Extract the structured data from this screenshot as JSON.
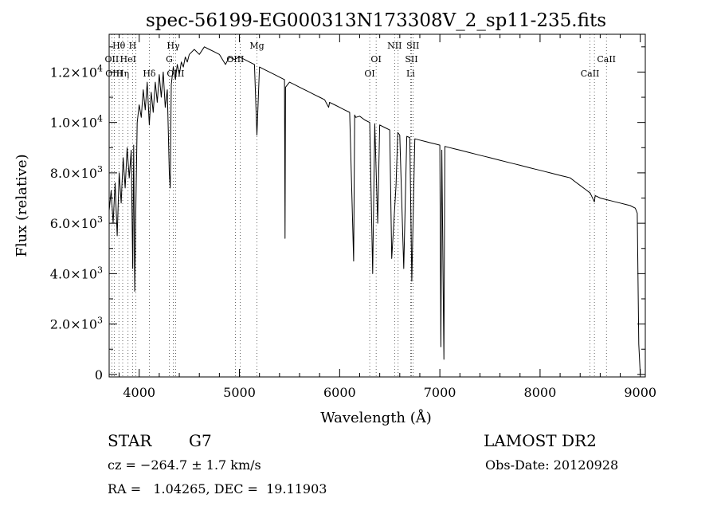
{
  "chart_data": {
    "type": "line",
    "title": "spec-56199-EG000313N173308V_2_sp11-235.fits",
    "xlabel": "Wavelength (Å)",
    "ylabel": "Flux (relative)",
    "xlim": [
      3700,
      9050
    ],
    "ylim": [
      -100,
      13500
    ],
    "x_ticks": [
      4000,
      5000,
      6000,
      7000,
      8000,
      9000
    ],
    "x_tick_labels": [
      "4000",
      "5000",
      "6000",
      "7000",
      "8000",
      "9000"
    ],
    "y_ticks": [
      0,
      2000,
      4000,
      6000,
      8000,
      10000,
      12000
    ],
    "y_tick_labels": [
      {
        "base": "0",
        "exp": ""
      },
      {
        "base": "2.0×10",
        "exp": "3"
      },
      {
        "base": "4.0×10",
        "exp": "3"
      },
      {
        "base": "6.0×10",
        "exp": "3"
      },
      {
        "base": "8.0×10",
        "exp": "3"
      },
      {
        "base": "1.0×10",
        "exp": "4"
      },
      {
        "base": "1.2×10",
        "exp": "4"
      }
    ],
    "grid": false,
    "series": [
      {
        "x": [
          3700,
          3720,
          3740,
          3760,
          3780,
          3800,
          3820,
          3840,
          3860,
          3880,
          3900,
          3920,
          3935,
          3945,
          3955,
          3968,
          3980,
          4000,
          4020,
          4040,
          4060,
          4080,
          4101,
          4120,
          4140,
          4160,
          4180,
          4200,
          4220,
          4240,
          4260,
          4280,
          4300,
          4310,
          4320,
          4340,
          4361,
          4380,
          4400,
          4420,
          4440,
          4460,
          4480,
          4500,
          4550,
          4600,
          4650,
          4700,
          4750,
          4800,
          4861,
          4900,
          4950,
          5000,
          5050,
          5100,
          5150,
          5175,
          5200,
          5250,
          5300,
          5350,
          5400,
          5450,
          5455,
          5460,
          5500,
          5550,
          5600,
          5650,
          5700,
          5750,
          5800,
          5850,
          5890,
          5900,
          5950,
          6000,
          6050,
          6100,
          6140,
          6150,
          6160,
          6200,
          6250,
          6300,
          6330,
          6350,
          6380,
          6400,
          6450,
          6500,
          6520,
          6563,
          6580,
          6600,
          6640,
          6670,
          6700,
          6720,
          6750,
          6800,
          6850,
          6900,
          6950,
          7000,
          7010,
          7020,
          7040,
          7050,
          7100,
          7150,
          7200,
          7250,
          7300,
          7350,
          7400,
          7450,
          7500,
          7550,
          7600,
          7650,
          7700,
          7750,
          7800,
          7850,
          7900,
          7950,
          8000,
          8050,
          8100,
          8150,
          8200,
          8250,
          8300,
          8350,
          8400,
          8450,
          8500,
          8542,
          8550,
          8600,
          8650,
          8700,
          8750,
          8800,
          8850,
          8900,
          8950,
          8970,
          8985,
          9000
        ],
        "y": [
          6500,
          7300,
          6000,
          7600,
          5500,
          8000,
          6800,
          8600,
          7400,
          9000,
          7800,
          8900,
          4200,
          9100,
          3300,
          7000,
          10000,
          10700,
          10200,
          11300,
          10500,
          11600,
          9900,
          11200,
          10400,
          11600,
          10800,
          11900,
          11000,
          12000,
          10600,
          11300,
          8000,
          7400,
          11500,
          12200,
          11700,
          12300,
          11900,
          12400,
          12200,
          12600,
          12400,
          12700,
          12900,
          12700,
          13000,
          12900,
          12800,
          12700,
          12300,
          12600,
          12500,
          12600,
          12500,
          12400,
          12300,
          9500,
          12200,
          12100,
          12000,
          11900,
          11800,
          11700,
          5400,
          11400,
          11600,
          11500,
          11400,
          11300,
          11200,
          11100,
          11000,
          10900,
          10600,
          10800,
          10700,
          10600,
          10500,
          10400,
          4500,
          10300,
          10200,
          10250,
          10100,
          10000,
          4000,
          9950,
          6000,
          9900,
          9800,
          9700,
          4600,
          7500,
          9600,
          9500,
          4200,
          9450,
          9400,
          3700,
          9350,
          9300,
          9250,
          9200,
          9150,
          9100,
          1100,
          8900,
          600,
          9050,
          9000,
          8950,
          8900,
          8850,
          8800,
          8750,
          8700,
          8650,
          8600,
          8550,
          8500,
          8450,
          8400,
          8350,
          8300,
          8250,
          8200,
          8150,
          8100,
          8050,
          8000,
          7950,
          7900,
          7850,
          7800,
          7650,
          7500,
          7350,
          7200,
          6850,
          7100,
          7000,
          6950,
          6900,
          6850,
          6800,
          6750,
          6700,
          6600,
          6400,
          1200,
          0
        ]
      }
    ],
    "line_markers": [
      {
        "x": 3727,
        "label": "OII",
        "row": 2
      },
      {
        "x": 3750,
        "label": "OIII",
        "row": 3
      },
      {
        "x": 3797,
        "label": "Hθ",
        "row": 1
      },
      {
        "x": 3835,
        "label": "Hη",
        "row": 3
      },
      {
        "x": 3889,
        "label": "HeI",
        "row": 2
      },
      {
        "x": 3934,
        "label": "H",
        "row": 1
      },
      {
        "x": 3968,
        "label": "",
        "row": 0
      },
      {
        "x": 4101,
        "label": "Hδ",
        "row": 3
      },
      {
        "x": 4300,
        "label": "G",
        "row": 2
      },
      {
        "x": 4340,
        "label": "Hγ",
        "row": 1
      },
      {
        "x": 4363,
        "label": "OIII",
        "row": 3
      },
      {
        "x": 4959,
        "label": "OIII",
        "row": 2
      },
      {
        "x": 5007,
        "label": "",
        "row": 0
      },
      {
        "x": 5175,
        "label": "Mg",
        "row": 1
      },
      {
        "x": 6300,
        "label": "OI",
        "row": 3
      },
      {
        "x": 6364,
        "label": "OI",
        "row": 2
      },
      {
        "x": 6548,
        "label": "NII",
        "row": 1
      },
      {
        "x": 6584,
        "label": "",
        "row": 0
      },
      {
        "x": 6708,
        "label": "Li",
        "row": 3
      },
      {
        "x": 6717,
        "label": "SII",
        "row": 2
      },
      {
        "x": 6731,
        "label": "SII",
        "row": 1
      },
      {
        "x": 8498,
        "label": "CaII",
        "row": 3
      },
      {
        "x": 8542,
        "label": "",
        "row": 0
      },
      {
        "x": 8662,
        "label": "CaII",
        "row": 2
      }
    ]
  },
  "info": {
    "object_type": "STAR",
    "subclass": "G7",
    "survey": "LAMOST DR2",
    "redshift": "cz = −264.7 ± 1.7 km/s",
    "obs_date": "Obs-Date: 20120928",
    "coords": "RA =   1.04265, DEC =  19.11903"
  }
}
